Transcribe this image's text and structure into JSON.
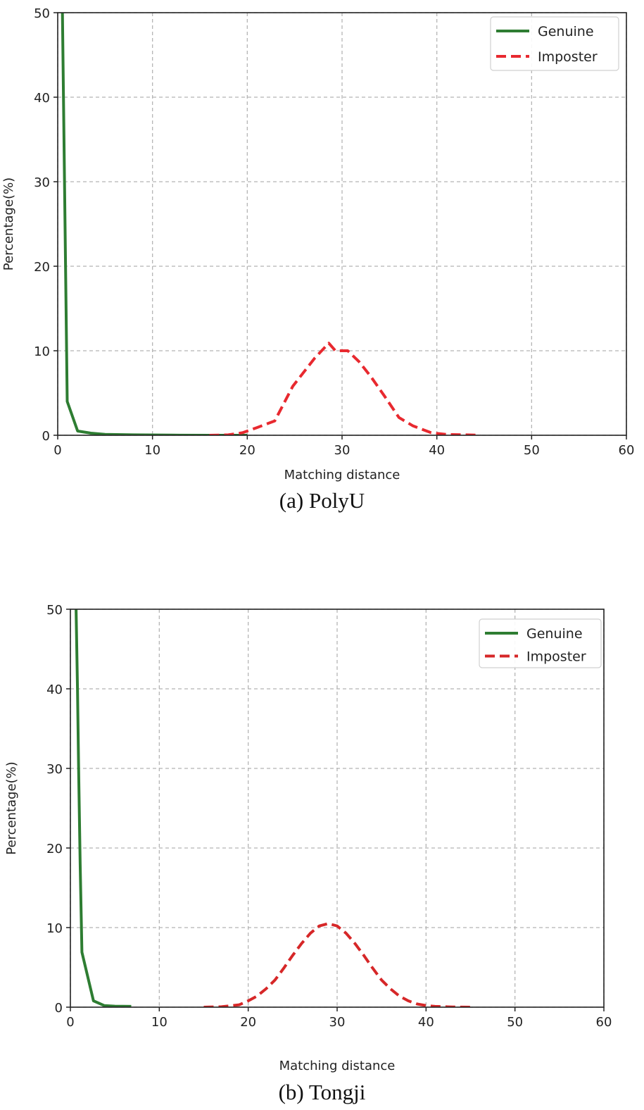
{
  "chart_data": [
    {
      "type": "line",
      "caption": "(a) PolyU",
      "xlabel": "Matching distance",
      "ylabel": "Percentage(%)",
      "xlim": [
        0,
        60
      ],
      "ylim": [
        0,
        50
      ],
      "xticks": [
        0,
        10,
        20,
        30,
        40,
        50,
        60
      ],
      "yticks": [
        0,
        10,
        20,
        30,
        40,
        50
      ],
      "grid": true,
      "legend": "top-right",
      "series": [
        {
          "name": "Genuine",
          "style": "solid",
          "color": "#2e7d32",
          "x": [
            0.5,
            1,
            2.1,
            3.5,
            5,
            8,
            12,
            16,
            20
          ],
          "y": [
            50,
            4.0,
            0.5,
            0.25,
            0.1,
            0.05,
            0.02,
            0,
            0
          ]
        },
        {
          "name": "Imposter",
          "style": "dashed",
          "color": "#e8292f",
          "x": [
            16,
            18,
            19.5,
            21,
            22.9,
            24.8,
            27.1,
            28.6,
            29.3,
            30.6,
            31.8,
            33.0,
            34.5,
            36.0,
            37.5,
            39.4,
            41,
            43,
            44.6
          ],
          "y": [
            0,
            0.05,
            0.3,
            0.9,
            1.7,
            5.8,
            9.1,
            10.9,
            10.0,
            10.0,
            8.7,
            7.0,
            4.6,
            2.1,
            1.1,
            0.3,
            0.1,
            0.05,
            0
          ]
        }
      ]
    },
    {
      "type": "line",
      "caption": "(b) Tongji",
      "xlabel": "Matching distance",
      "ylabel": "Percentage(%)",
      "xlim": [
        0,
        60
      ],
      "ylim": [
        0,
        50
      ],
      "xticks": [
        0,
        10,
        20,
        30,
        40,
        50,
        60
      ],
      "yticks": [
        0,
        10,
        20,
        30,
        40,
        50
      ],
      "grid": true,
      "legend": "top-right",
      "series": [
        {
          "name": "Genuine",
          "style": "solid",
          "color": "#2e7d32",
          "x": [
            0.64,
            0.8,
            0.93,
            1.1,
            1.3,
            2.6,
            3.8,
            5,
            6.85
          ],
          "y": [
            50,
            40,
            30,
            18,
            6.9,
            0.8,
            0.2,
            0.12,
            0.1
          ]
        },
        {
          "name": "Imposter",
          "style": "dashed",
          "color": "#d62728",
          "x": [
            15,
            17,
            19,
            20,
            21,
            22,
            23,
            24,
            25,
            26,
            27,
            28,
            29,
            30,
            31,
            32,
            33,
            34,
            35,
            36,
            37,
            38,
            39,
            40,
            41,
            43,
            45
          ],
          "y": [
            0,
            0.05,
            0.3,
            0.8,
            1.4,
            2.3,
            3.4,
            4.9,
            6.5,
            8.0,
            9.3,
            10.2,
            10.5,
            10.2,
            9.3,
            8.0,
            6.5,
            4.9,
            3.4,
            2.3,
            1.4,
            0.8,
            0.4,
            0.2,
            0.1,
            0.03,
            0
          ]
        }
      ]
    }
  ]
}
